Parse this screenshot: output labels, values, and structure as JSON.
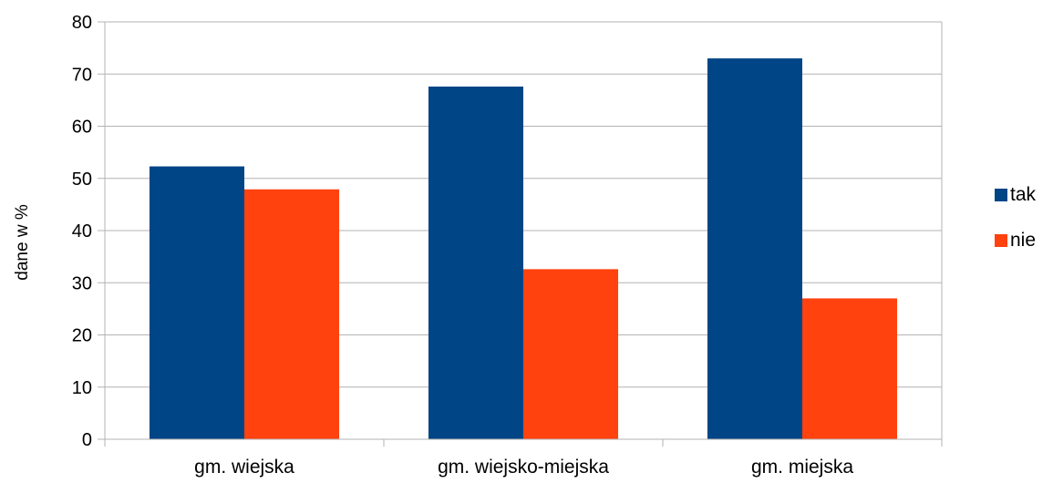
{
  "chart_data": {
    "type": "bar",
    "title": "",
    "xlabel": "",
    "ylabel": "dane w %",
    "categories": [
      "gm. wiejska",
      "gm. wiejsko-miejska",
      "gm. miejska"
    ],
    "series": [
      {
        "name": "tak",
        "values": [
          52.3,
          67.6,
          73.0
        ],
        "color": "#004586"
      },
      {
        "name": "nie",
        "values": [
          47.9,
          32.6,
          27.0
        ],
        "color": "#ff420e"
      }
    ],
    "ylim": [
      0,
      80
    ],
    "yticks": [
      "0",
      "10",
      "20",
      "30",
      "40",
      "50",
      "60",
      "70",
      "80"
    ],
    "grid": true,
    "legend_position": "right"
  }
}
